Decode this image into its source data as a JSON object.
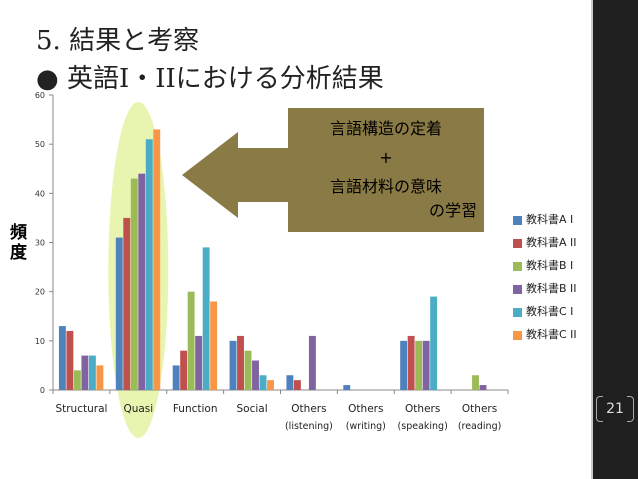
{
  "slide": {
    "title_line1": "5. 結果と考察",
    "title_line2": "● 英語I・IIにおける分析結果",
    "slide_number": "21"
  },
  "callout": {
    "line1": "言語構造の定着",
    "line2": "+",
    "line3": "言語材料の意味",
    "line4": "の学習",
    "arrow_color": "#8a7a45"
  },
  "chart_data": {
    "type": "bar",
    "ylabel": "頻\n度",
    "xlabel": "",
    "ylim": [
      0,
      60
    ],
    "yticks": [
      0,
      10,
      20,
      30,
      40,
      50,
      60
    ],
    "grid": false,
    "legend_position": "right",
    "categories": [
      "Structural",
      "Quasi",
      "Function",
      "Social",
      "Others\n(listening)",
      "Others\n(writing)",
      "Others\n(speaking)",
      "Others\n(reading)"
    ],
    "highlight_category": "Quasi",
    "series": [
      {
        "name": "教科書A I",
        "color": "#4f81bd",
        "values": [
          13,
          31,
          5,
          10,
          3,
          1,
          10,
          0
        ]
      },
      {
        "name": "教科書A II",
        "color": "#c0504d",
        "values": [
          12,
          35,
          8,
          11,
          2,
          0,
          11,
          0
        ]
      },
      {
        "name": "教科書B I",
        "color": "#9bbb59",
        "values": [
          4,
          43,
          20,
          8,
          0,
          0,
          10,
          3
        ]
      },
      {
        "name": "教科書B II",
        "color": "#8064a2",
        "values": [
          7,
          44,
          11,
          6,
          11,
          0,
          10,
          1
        ]
      },
      {
        "name": "教科書C I",
        "color": "#4bacc6",
        "values": [
          7,
          51,
          29,
          3,
          0,
          0,
          19,
          0
        ]
      },
      {
        "name": "教科書C II",
        "color": "#f79646",
        "values": [
          5,
          53,
          18,
          2,
          0,
          0,
          0,
          0
        ]
      }
    ]
  }
}
